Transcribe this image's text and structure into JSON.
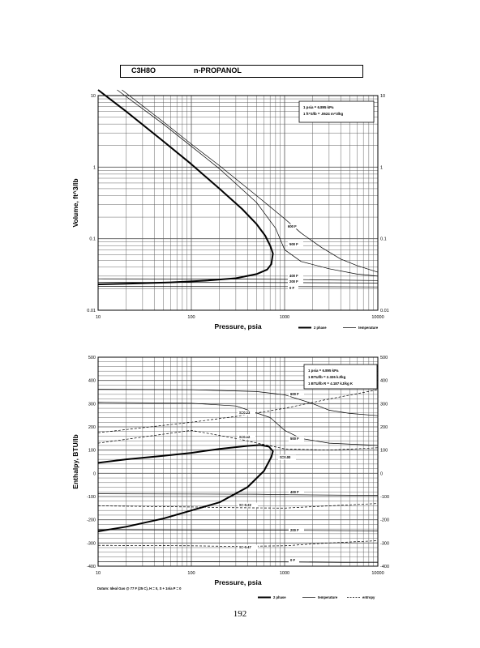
{
  "header": {
    "formula": "C3H8O",
    "name": "n-PROPANOL"
  },
  "page_number": "192",
  "footnote": "Datum: Ideal Gas @ 77 F (25 C), H = 0, S + 1n/a P = 0",
  "chart_data": [
    {
      "type": "line",
      "xlabel": "Pressure, psia",
      "ylabel": "Volume, ft^3/lb",
      "xscale": "log",
      "yscale": "log",
      "xlim": [
        10,
        10000
      ],
      "ylim": [
        0.01,
        10
      ],
      "grid": true,
      "x_ticks": [
        10,
        100,
        1000,
        10000
      ],
      "x_tick_labels": [
        "10",
        "100",
        "1000",
        "10000"
      ],
      "y_ticks": [
        0.01,
        0.1,
        1,
        10
      ],
      "y_tick_labels": [
        "0.01",
        "0.1",
        "1",
        "10"
      ],
      "conversion_box": [
        "1 psia = 6.895 kPa",
        "1 ft^3/lb = .0624 m^3/kg"
      ],
      "legend": [
        {
          "label": "2 phase",
          "style": "thick"
        },
        {
          "label": "temperature",
          "style": "thin"
        }
      ],
      "series": [
        {
          "style": "thick",
          "x": [
            10,
            20,
            50,
            100,
            200,
            350,
            500,
            620,
            700,
            750,
            720,
            650,
            500,
            300,
            150,
            60,
            20,
            10
          ],
          "y": [
            12,
            6,
            2.3,
            1.1,
            0.5,
            0.26,
            0.16,
            0.11,
            0.08,
            0.062,
            0.044,
            0.037,
            0.032,
            0.028,
            0.026,
            0.0245,
            0.0235,
            0.023
          ]
        },
        {
          "label": "600 F",
          "style": "thin",
          "x": [
            18,
            50,
            100,
            200,
            500,
            1000,
            1500,
            2500,
            4000,
            6000,
            10000
          ],
          "y": [
            12,
            4.3,
            2.1,
            1.05,
            0.4,
            0.19,
            0.12,
            0.075,
            0.052,
            0.042,
            0.034
          ]
        },
        {
          "label": "500 F",
          "style": "thin",
          "x": [
            16,
            50,
            100,
            200,
            500,
            800,
            1000,
            1500,
            3000,
            6000,
            10000
          ],
          "y": [
            12,
            4,
            1.95,
            0.95,
            0.32,
            0.14,
            0.07,
            0.048,
            0.038,
            0.032,
            0.03
          ]
        },
        {
          "label": "400 F",
          "style": "thin",
          "x": [
            10,
            400,
            1000,
            3000,
            10000
          ],
          "y": [
            0.0275,
            0.0272,
            0.027,
            0.0265,
            0.026
          ]
        },
        {
          "label": "200 F",
          "style": "thin",
          "x": [
            10,
            1000,
            10000
          ],
          "y": [
            0.0245,
            0.0243,
            0.024
          ]
        },
        {
          "label": "0 F",
          "style": "thin",
          "x": [
            10,
            1000,
            10000
          ],
          "y": [
            0.0215,
            0.0214,
            0.0212
          ]
        }
      ],
      "annotations": [
        "600 F",
        "500 F",
        "400 F",
        "200 F",
        "0 F"
      ]
    },
    {
      "type": "line",
      "xlabel": "Pressure, psia",
      "ylabel": "Enthalpy, BTU/lb",
      "xscale": "log",
      "yscale": "linear",
      "xlim": [
        10,
        10000
      ],
      "ylim": [
        -400,
        500
      ],
      "grid": true,
      "x_ticks": [
        10,
        100,
        1000,
        10000
      ],
      "x_tick_labels": [
        "10",
        "100",
        "1000",
        "10000"
      ],
      "y_ticks": [
        -400,
        -300,
        -200,
        -100,
        0,
        100,
        200,
        300,
        400,
        500
      ],
      "y_tick_labels_left": [
        "-400",
        "-300",
        "-200",
        "-100",
        "0",
        "100",
        "200",
        "300",
        "400",
        "500"
      ],
      "y_tick_labels_right": [
        "-400",
        "-300",
        "-200",
        "-100",
        "0",
        "100",
        "200",
        "300",
        "400",
        "500"
      ],
      "conversion_box": [
        "1 psia = 6.895 kPa",
        "1 BTU/lb = 2.326 kJ/kg",
        "1 BTU/lb R = 4.187 kJ/kg K"
      ],
      "legend": [
        {
          "label": "2 phase",
          "style": "thick"
        },
        {
          "label": "temperature",
          "style": "thin"
        },
        {
          "label": "entropy",
          "style": "dashed"
        }
      ],
      "series": [
        {
          "style": "thick",
          "x": [
            10,
            20,
            50,
            100,
            200,
            400,
            550,
            680,
            750,
            720,
            600,
            400,
            200,
            100,
            50,
            20,
            10
          ],
          "y": [
            45,
            60,
            75,
            88,
            105,
            118,
            122,
            115,
            95,
            70,
            10,
            -60,
            -125,
            -160,
            -195,
            -230,
            -250
          ]
        },
        {
          "label": "600 F",
          "style": "thin",
          "x": [
            10,
            100,
            500,
            1000,
            2000,
            3000,
            5000,
            10000
          ],
          "y": [
            362,
            360,
            352,
            338,
            300,
            272,
            258,
            248
          ]
        },
        {
          "label": "500 F",
          "style": "thin",
          "x": [
            10,
            100,
            300,
            700,
            1000,
            1500,
            3000,
            10000
          ],
          "y": [
            306,
            302,
            290,
            240,
            185,
            150,
            130,
            120
          ]
        },
        {
          "label": "400 F",
          "style": "thin",
          "x": [
            10,
            500,
            1000,
            10000
          ],
          "y": [
            -88,
            -90,
            -92,
            -95
          ]
        },
        {
          "label": "200 F",
          "style": "thin",
          "x": [
            10,
            1000,
            10000
          ],
          "y": [
            -243,
            -245,
            -248
          ]
        },
        {
          "label": "0 F",
          "style": "thin",
          "x": [
            10,
            1000,
            10000
          ],
          "y": [
            -380,
            -382,
            -385
          ]
        },
        {
          "label": "S=0.23",
          "style": "dashed",
          "x": [
            10,
            100,
            300,
            1000,
            3000,
            10000
          ],
          "y": [
            175,
            220,
            245,
            280,
            320,
            360
          ]
        },
        {
          "label": "S=0.12",
          "style": "dashed",
          "x": [
            10,
            100,
            300,
            1000,
            3000,
            10000
          ],
          "y": [
            130,
            185,
            150,
            105,
            100,
            110
          ]
        },
        {
          "label": "S=-0.22",
          "style": "dashed",
          "x": [
            10,
            100,
            300,
            1000,
            3000,
            10000
          ],
          "y": [
            -140,
            -145,
            -148,
            -150,
            -140,
            -130
          ]
        },
        {
          "label": "S=-0.47",
          "style": "dashed",
          "x": [
            10,
            100,
            300,
            1000,
            3000,
            10000
          ],
          "y": [
            -310,
            -312,
            -315,
            -312,
            -300,
            -290
          ]
        }
      ],
      "annotations": [
        "600 F",
        "500 F",
        "400 F",
        "200 F",
        "0 F",
        "S=0.23",
        "S=0.12",
        "S=0.00",
        "S=-0.22",
        "S=-0.47"
      ]
    }
  ]
}
